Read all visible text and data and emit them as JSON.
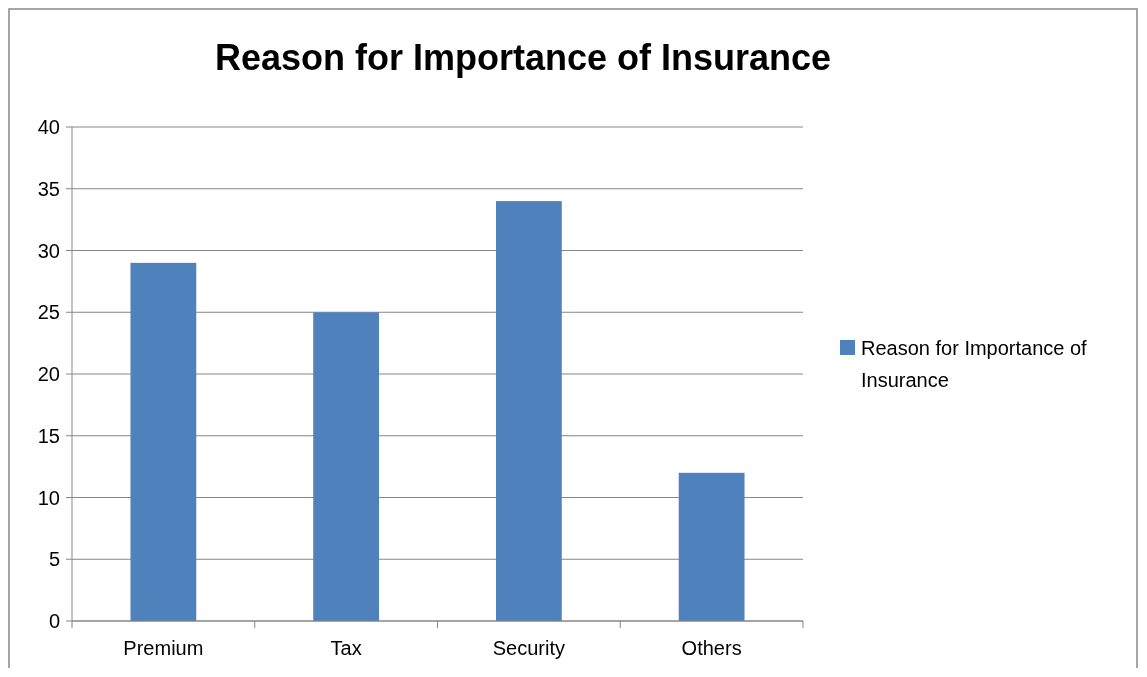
{
  "chart_data": {
    "type": "bar",
    "title": "Reason for Importance of Insurance",
    "categories": [
      "Premium",
      "Tax",
      "Security",
      "Others"
    ],
    "series": [
      {
        "name": "Reason for Importance of Insurance",
        "color": "#4f81bd",
        "values": [
          29,
          25,
          34,
          12
        ]
      }
    ],
    "ylim": [
      0,
      40
    ],
    "yticks": [
      0,
      5,
      10,
      15,
      20,
      25,
      30,
      35,
      40
    ],
    "grid": "y",
    "legend": "right"
  }
}
